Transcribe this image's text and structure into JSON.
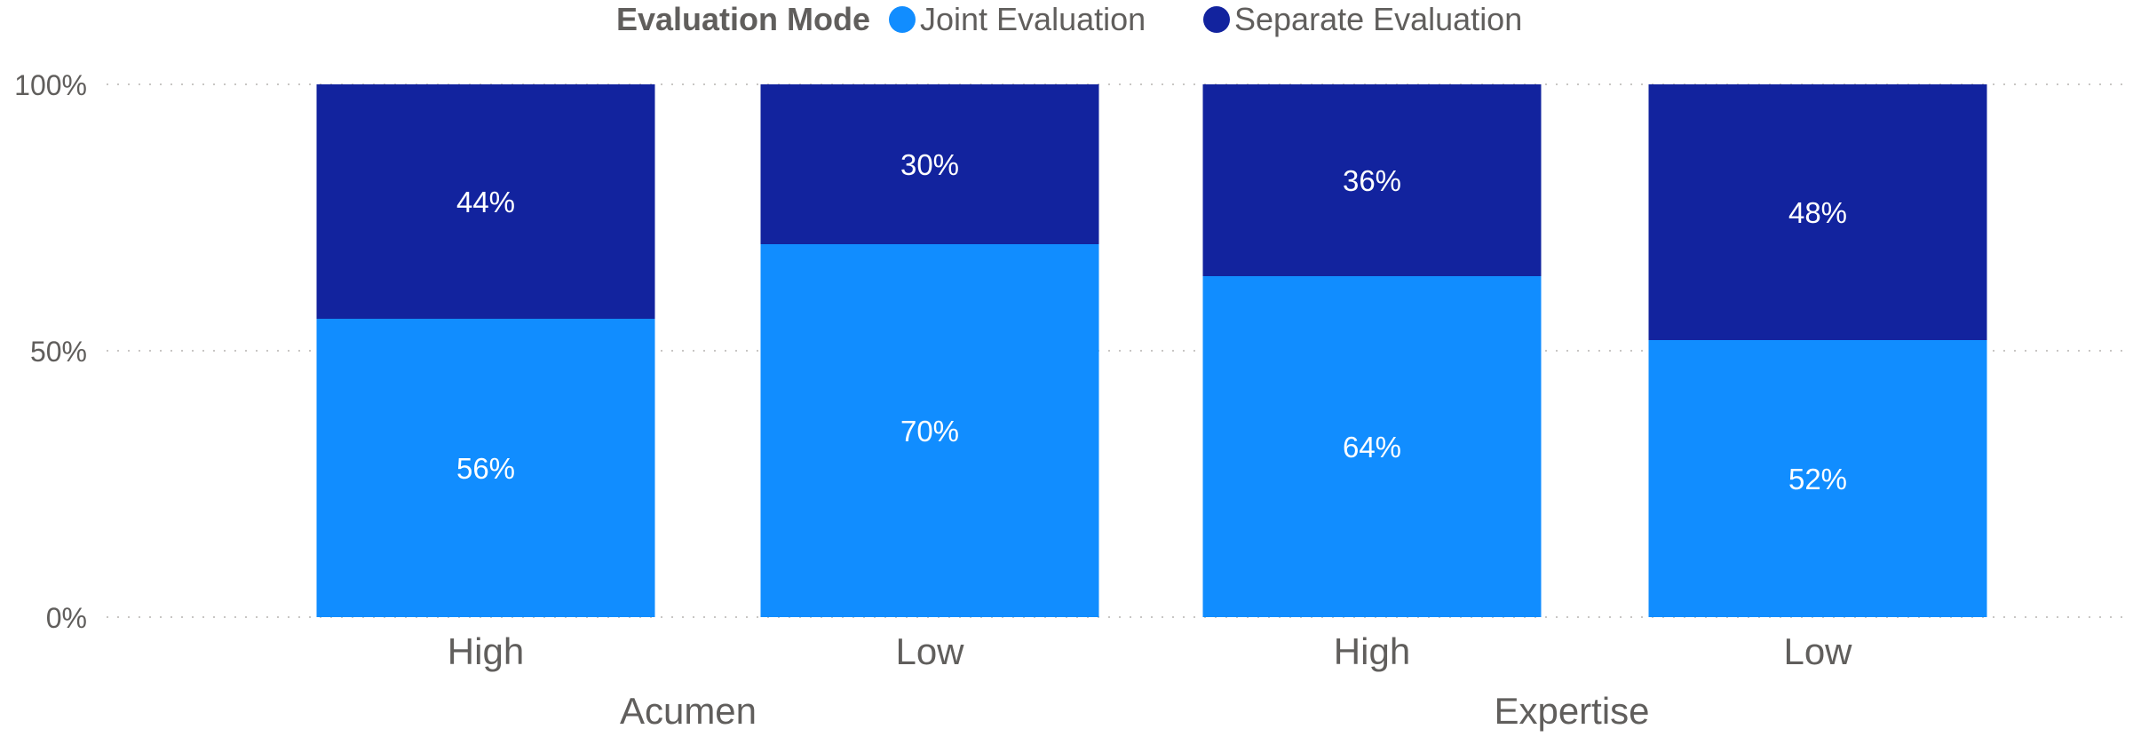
{
  "legend": {
    "title": "Evaluation Mode",
    "items": [
      {
        "label": "Joint Evaluation",
        "color": "#118dff"
      },
      {
        "label": "Separate Evaluation",
        "color": "#12239e"
      }
    ]
  },
  "chart_data": {
    "type": "bar",
    "stacked": true,
    "percent_stacked": true,
    "categories": [
      "High",
      "Low",
      "High",
      "Low"
    ],
    "groups": [
      {
        "label": "Acumen",
        "categories": [
          "High",
          "Low"
        ]
      },
      {
        "label": "Expertise",
        "categories": [
          "High",
          "Low"
        ]
      }
    ],
    "series": [
      {
        "name": "Joint Evaluation",
        "color": "#118dff",
        "values": [
          56,
          70,
          64,
          52
        ],
        "labels": [
          "56%",
          "70%",
          "64%",
          "52%"
        ]
      },
      {
        "name": "Separate Evaluation",
        "color": "#12239e",
        "values": [
          44,
          30,
          36,
          48
        ],
        "labels": [
          "44%",
          "30%",
          "36%",
          "48%"
        ]
      }
    ],
    "yticks": [
      "0%",
      "50%",
      "100%"
    ],
    "ytick_values": [
      0,
      50,
      100
    ],
    "ylim": [
      0,
      100
    ],
    "grid": true,
    "legend_position": "top-center"
  }
}
